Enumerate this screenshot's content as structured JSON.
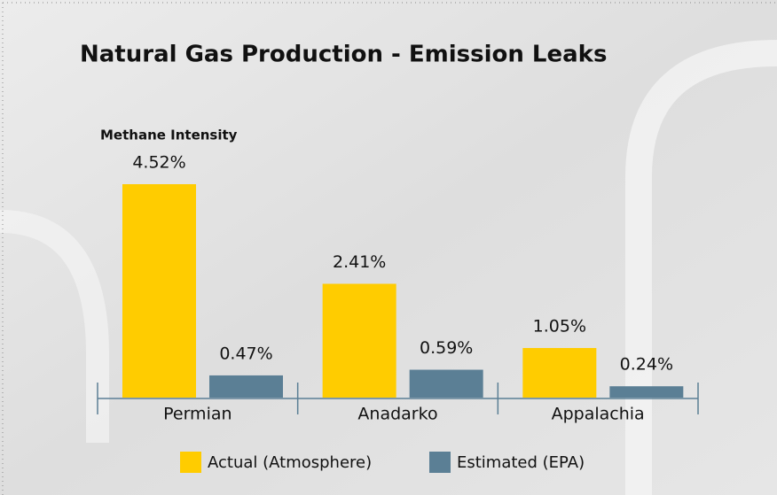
{
  "chart_data": {
    "type": "bar",
    "title": "Natural Gas Production - Emission Leaks",
    "subtitle": "Methane Intensity",
    "categories": [
      "Permian",
      "Anadarko",
      "Appalachia"
    ],
    "series": [
      {
        "name": "Actual (Atmosphere)",
        "color": "#ffcc00",
        "values": [
          4.52,
          2.41,
          1.05
        ],
        "value_labels": [
          "4.52%",
          "2.41%",
          "1.05%"
        ]
      },
      {
        "name": "Estimated (EPA)",
        "color": "#5b7f95",
        "values": [
          0.47,
          0.59,
          0.24
        ],
        "value_labels": [
          "0.47%",
          "0.59%",
          "0.24%"
        ]
      }
    ],
    "legend": "bottom"
  }
}
